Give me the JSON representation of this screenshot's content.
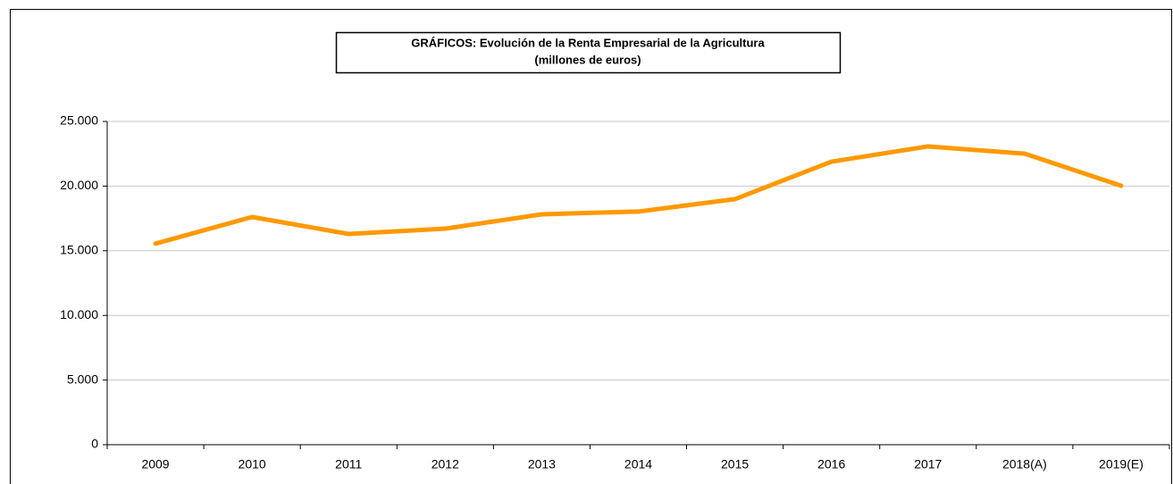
{
  "chart_data": {
    "type": "line",
    "title": "GRÁFICOS: Evolución de la Renta Empresarial de la Agricultura",
    "subtitle": "(millones de euros)",
    "categories": [
      "2009",
      "2010",
      "2011",
      "2012",
      "2013",
      "2014",
      "2015",
      "2016",
      "2017",
      "2018(A)",
      "2019(E)"
    ],
    "series": [
      {
        "name": "Renta Empresarial de la Agricultura",
        "color": "#ff9900",
        "values": [
          15550,
          17610,
          16300,
          16710,
          17820,
          18030,
          18990,
          21890,
          23070,
          22510,
          20030
        ]
      }
    ],
    "ylim": [
      0,
      25000
    ],
    "yticks": [
      0,
      {
        "value": 5000,
        "label": "5.000"
      },
      {
        "value": 10000,
        "label": "10.000"
      },
      {
        "value": 15000,
        "label": "15.000"
      },
      {
        "value": 20000,
        "label": "20.000"
      },
      {
        "value": 25000,
        "label": "25.000"
      }
    ],
    "grid": true
  }
}
